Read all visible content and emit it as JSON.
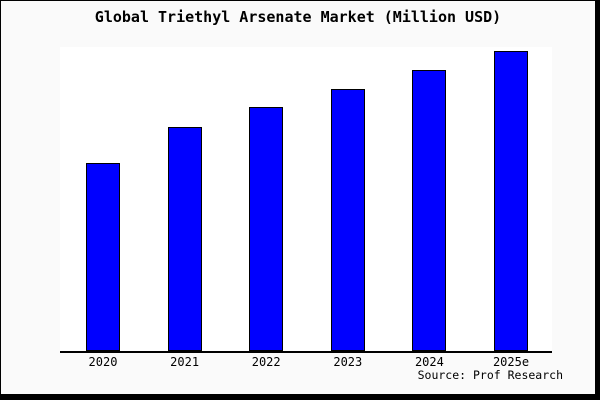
{
  "title": "Global Triethyl Arsenate Market (Million USD)",
  "source_label": "Source: Prof Research",
  "colors": {
    "bar_fill": "#0000ff",
    "bar_border": "#000000",
    "canvas_background": "#fafafa",
    "plot_background": "#ffffff",
    "axis": "#000000",
    "text": "#000000"
  },
  "chart_data": {
    "type": "bar",
    "title": "Global Triethyl Arsenate Market (Million USD)",
    "categories": [
      "2020",
      "2021",
      "2022",
      "2023",
      "2024",
      "2025e"
    ],
    "values": [
      188,
      224,
      244,
      262,
      281,
      300
    ],
    "value_units": "relative height (no y-axis scale shown in image)",
    "xlabel": "",
    "ylabel": "",
    "legend": false,
    "grid": false,
    "y_axis_visible": false,
    "x_axis_line_visible": true,
    "annotations": [
      "Source: Prof Research"
    ]
  }
}
